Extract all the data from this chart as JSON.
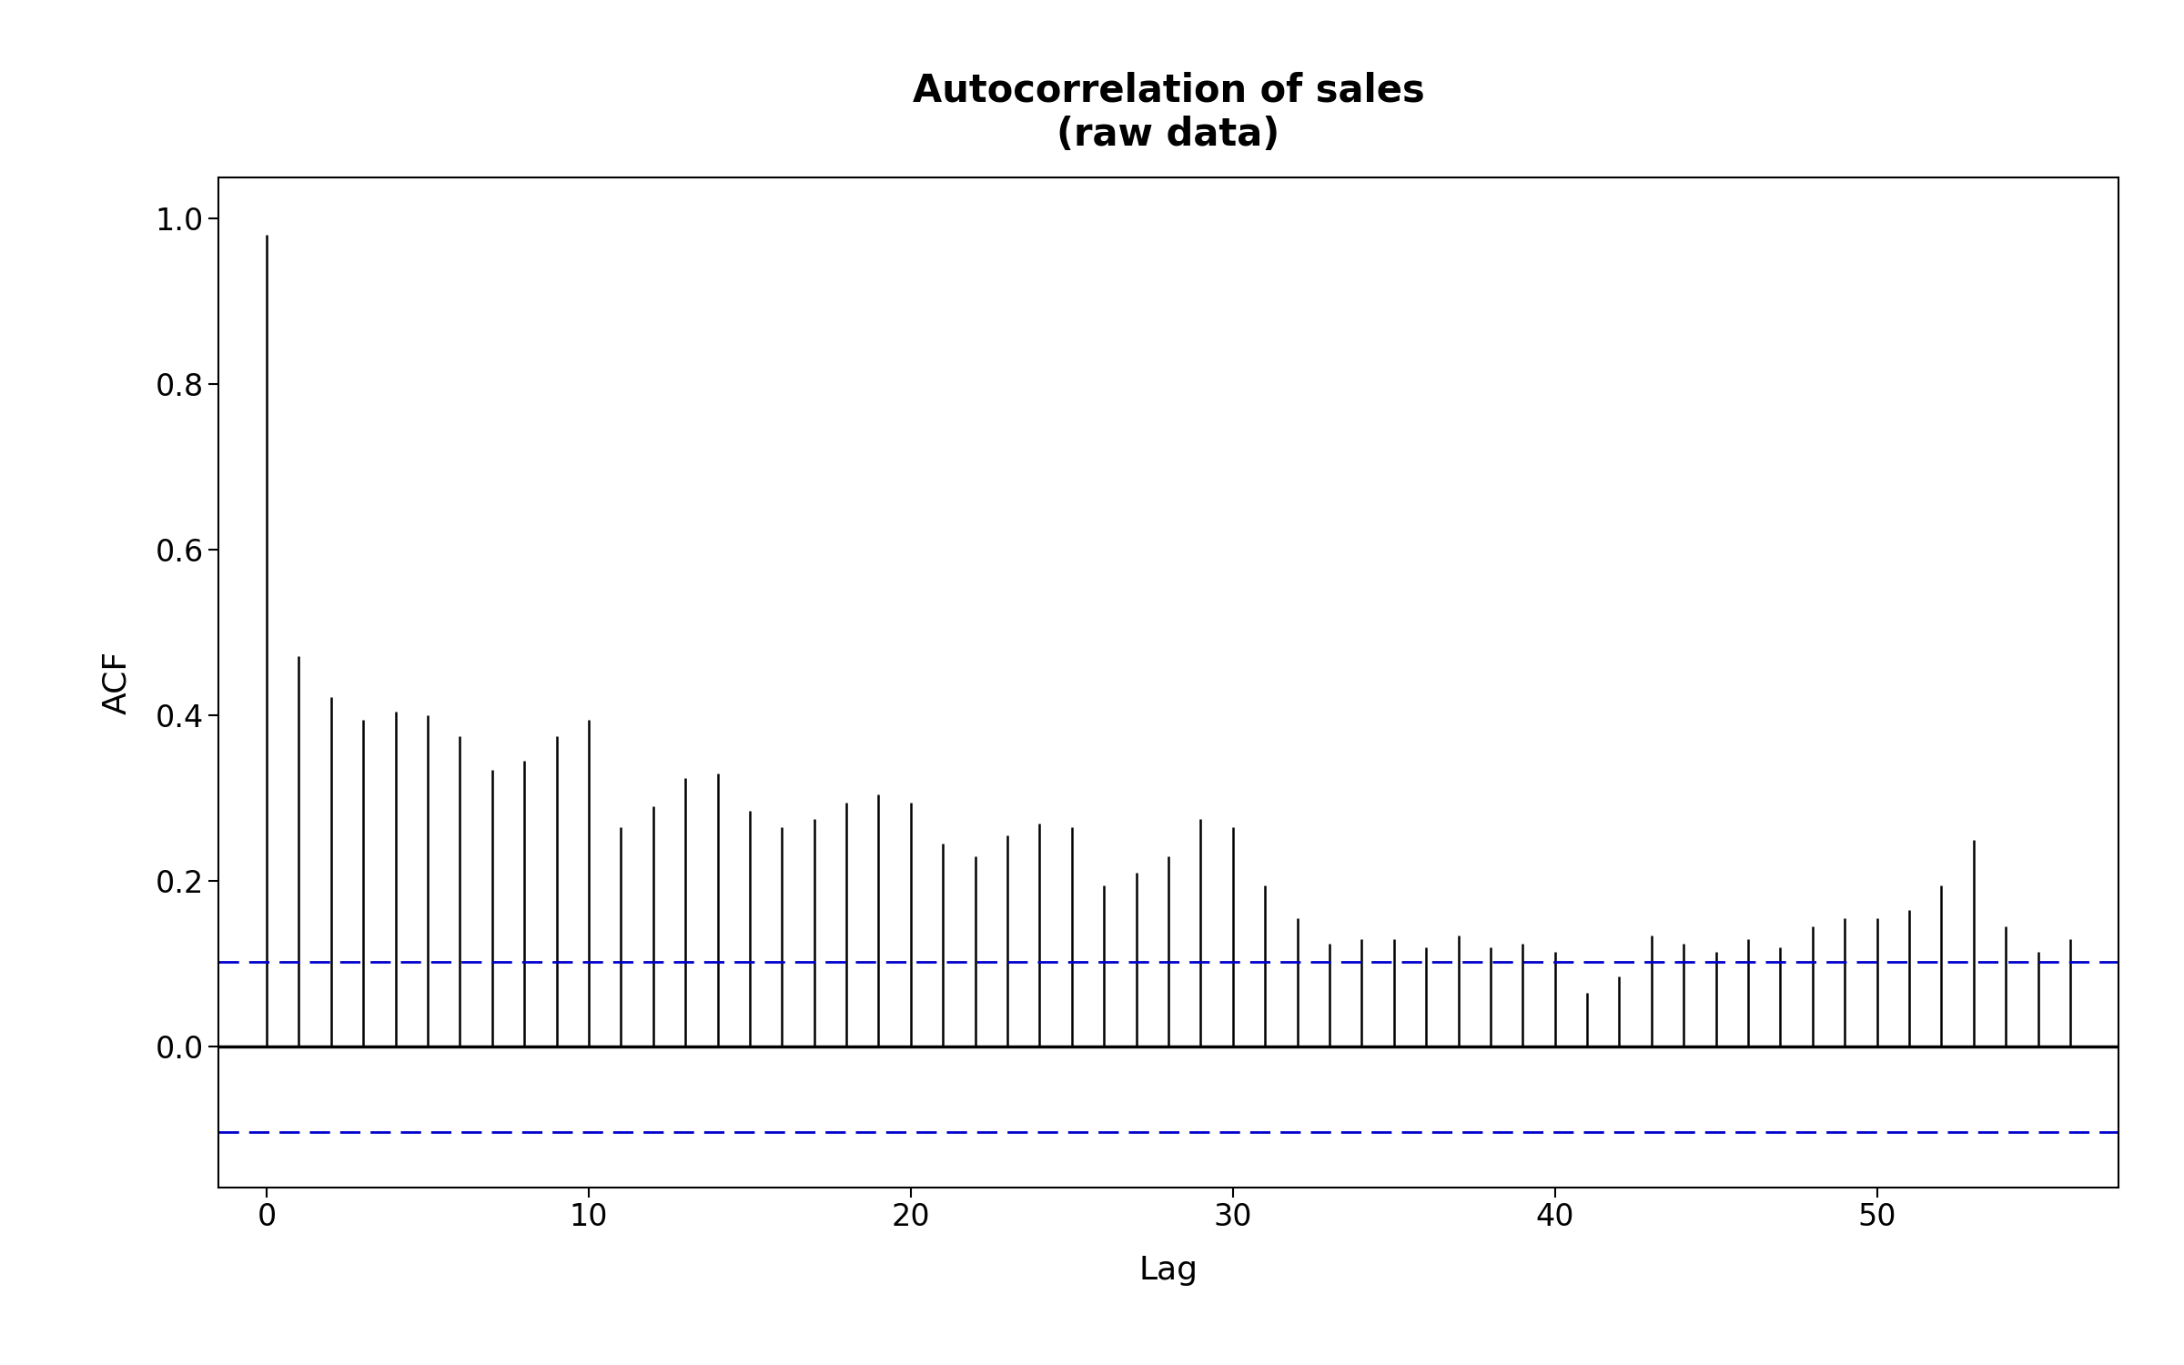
{
  "title": "Autocorrelation of sales\n(raw data)",
  "xlabel": "Lag",
  "ylabel": "ACF",
  "ylim": [
    -0.17,
    1.05
  ],
  "xlim": [
    -1.5,
    57.5
  ],
  "conf_int": 0.103,
  "acf_values": [
    0.981,
    0.472,
    0.422,
    0.395,
    0.405,
    0.4,
    0.375,
    0.335,
    0.345,
    0.375,
    0.395,
    0.265,
    0.29,
    0.325,
    0.33,
    0.285,
    0.265,
    0.275,
    0.295,
    0.305,
    0.295,
    0.245,
    0.23,
    0.255,
    0.27,
    0.265,
    0.195,
    0.21,
    0.23,
    0.275,
    0.265,
    0.195,
    0.155,
    0.125,
    0.13,
    0.13,
    0.12,
    0.135,
    0.12,
    0.125,
    0.115,
    0.065,
    0.085,
    0.135,
    0.125,
    0.115,
    0.13,
    0.12,
    0.145,
    0.155,
    0.155,
    0.165,
    0.195,
    0.25,
    0.145,
    0.115,
    0.13
  ],
  "xticks": [
    0,
    10,
    20,
    30,
    40,
    50
  ],
  "yticks": [
    0.0,
    0.2,
    0.4,
    0.6,
    0.8,
    1.0
  ],
  "stem_color": "#000000",
  "conf_color": "#0000cc",
  "zero_line_color": "#000000",
  "background_color": "#ffffff",
  "title_fontsize": 30,
  "axis_label_fontsize": 26,
  "tick_fontsize": 24
}
